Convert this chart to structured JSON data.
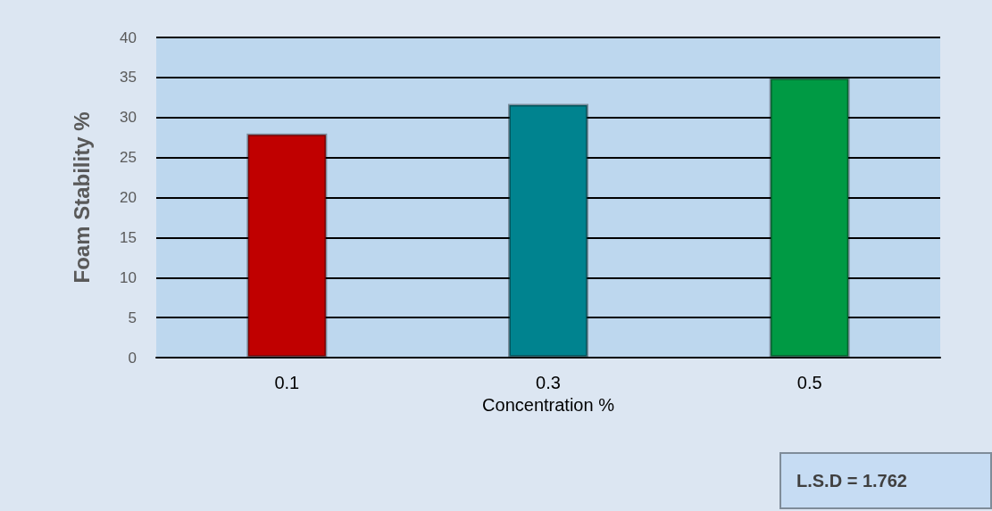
{
  "chart_data": {
    "type": "bar",
    "xlabel": "Concentration %",
    "ylabel": "Foam Stability %",
    "categories": [
      "0.1",
      "0.3",
      "0.5"
    ],
    "values": [
      28,
      31.7,
      35
    ],
    "colors": [
      "#c00000",
      "#00838f",
      "#009a44"
    ],
    "ylim": [
      0,
      40
    ],
    "yticks": [
      0,
      5,
      10,
      15,
      20,
      25,
      30,
      35,
      40
    ],
    "grid": "y",
    "annotations": [
      "L.S.D = 1.762"
    ]
  }
}
